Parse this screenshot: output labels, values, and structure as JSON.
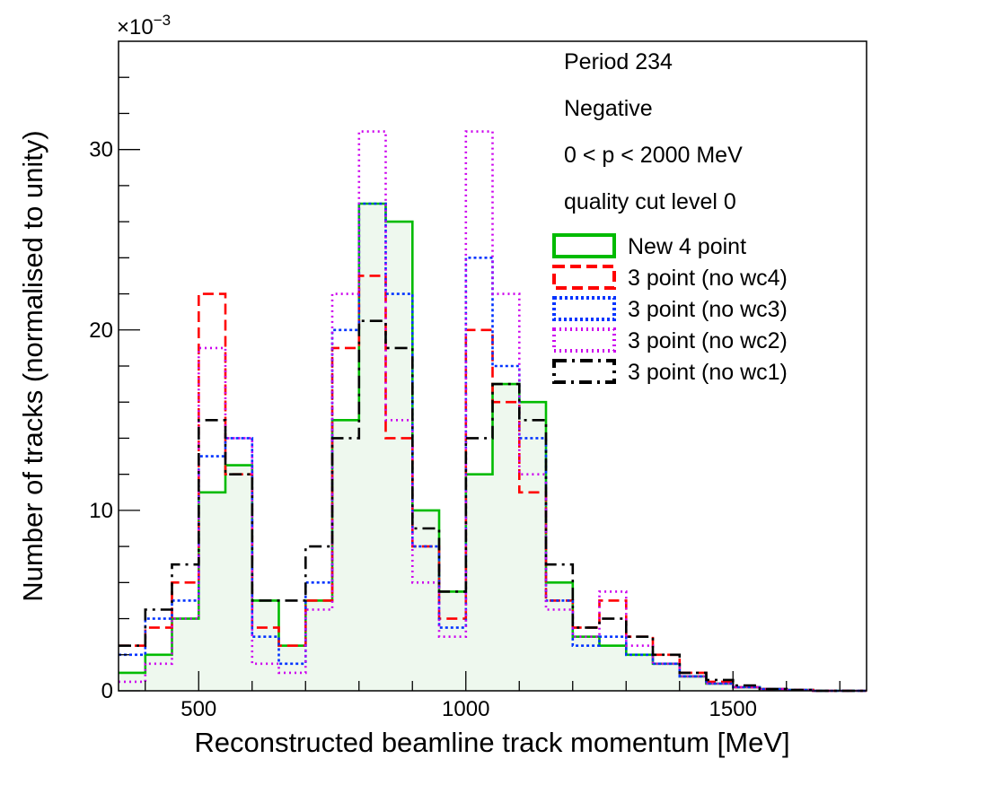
{
  "chart_data": {
    "type": "line",
    "style": "step-histogram",
    "xlabel": "Reconstructed beamline track momentum [MeV]",
    "ylabel": "Number of tracks (normalised to unity)",
    "y_multiplier": "×10",
    "y_multiplier_exp": "−3",
    "xlim": [
      350,
      1750
    ],
    "ylim": [
      0,
      36
    ],
    "x_ticks": [
      500,
      1000,
      1500
    ],
    "y_ticks": [
      0,
      10,
      20,
      30
    ],
    "grid": false,
    "legend_position": "top-right",
    "annotations": [
      "Period 234",
      "Negative",
      "0 < p < 2000 MeV",
      "quality cut level 0"
    ],
    "x": [
      350,
      400,
      450,
      500,
      550,
      600,
      650,
      700,
      750,
      800,
      850,
      900,
      950,
      1000,
      1050,
      1100,
      1150,
      1200,
      1250,
      1300,
      1350,
      1400,
      1450,
      1500,
      1550,
      1600,
      1650,
      1700,
      1750
    ],
    "series": [
      {
        "name": "New 4 point",
        "color": "#00bb00",
        "dash": "solid",
        "fill": "#eef8ee",
        "values": [
          1.0,
          2.0,
          4.0,
          11.0,
          12.5,
          5.0,
          2.5,
          5.0,
          15.0,
          27.0,
          26.0,
          10.0,
          5.5,
          12.0,
          17.0,
          16.0,
          6.0,
          3.0,
          2.5,
          2.0,
          1.5,
          0.8,
          0.4,
          0.2,
          0.1,
          0.05,
          0.0,
          0.0,
          0.0
        ]
      },
      {
        "name": "3 point (no wc4)",
        "color": "#ff0000",
        "dash": "dashed",
        "values": [
          2.5,
          3.5,
          6.0,
          22.0,
          12.0,
          3.5,
          2.5,
          5.0,
          19.0,
          23.0,
          14.0,
          8.0,
          4.0,
          20.0,
          16.0,
          11.0,
          5.0,
          3.5,
          5.0,
          3.0,
          2.0,
          1.0,
          0.5,
          0.2,
          0.1,
          0.05,
          0.0,
          0.0,
          0.0
        ]
      },
      {
        "name": "3 point (no wc3)",
        "color": "#0033ff",
        "dash": "dotted",
        "values": [
          2.0,
          4.0,
          5.0,
          13.0,
          14.0,
          3.0,
          1.5,
          6.0,
          20.0,
          27.0,
          22.0,
          8.0,
          3.5,
          24.0,
          18.0,
          14.0,
          5.0,
          2.5,
          3.0,
          2.0,
          1.5,
          0.8,
          0.4,
          0.2,
          0.1,
          0.05,
          0.0,
          0.0,
          0.0
        ]
      },
      {
        "name": "3 point (no wc2)",
        "color": "#cc00ee",
        "dash": "fine-dotted",
        "values": [
          0.5,
          1.5,
          4.0,
          19.0,
          14.0,
          1.5,
          1.0,
          4.5,
          22.0,
          31.0,
          15.0,
          6.0,
          3.0,
          31.0,
          22.0,
          12.0,
          4.5,
          3.0,
          5.5,
          2.5,
          1.5,
          0.8,
          0.4,
          0.2,
          0.1,
          0.05,
          0.0,
          0.0,
          0.0
        ]
      },
      {
        "name": "3 point (no wc1)",
        "color": "#000000",
        "dash": "dash-dot",
        "values": [
          2.5,
          4.5,
          7.0,
          15.0,
          12.0,
          5.0,
          5.0,
          8.0,
          14.0,
          20.5,
          19.0,
          9.0,
          5.5,
          14.0,
          17.0,
          15.0,
          7.0,
          3.5,
          4.0,
          3.0,
          2.0,
          1.0,
          0.6,
          0.3,
          0.1,
          0.05,
          0.0,
          0.0,
          0.0
        ]
      }
    ]
  }
}
